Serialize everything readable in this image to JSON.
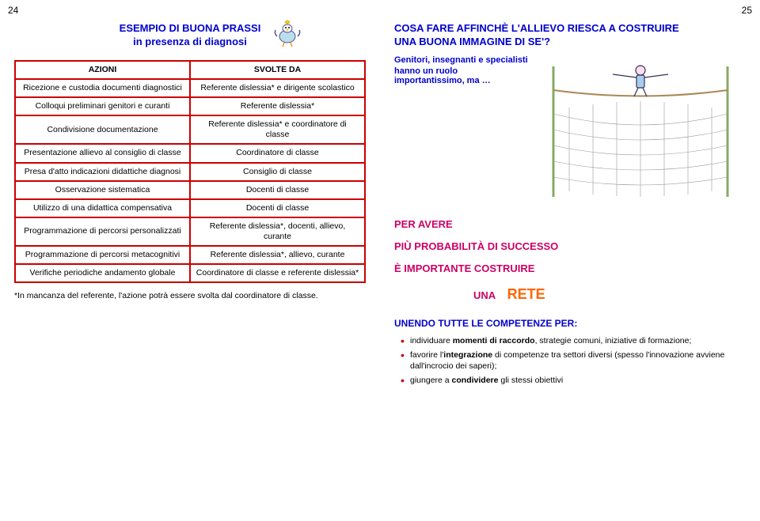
{
  "pagenum_left": "24",
  "pagenum_right": "25",
  "left": {
    "title1": "ESEMPIO DI BUONA PRASSI",
    "title2": "in presenza di diagnosi",
    "table": {
      "header": [
        "AZIONI",
        "SVOLTE DA"
      ],
      "rows": [
        [
          "Ricezione e custodia documenti diagnostici",
          "Referente dislessia* e dirigente scolastico"
        ],
        [
          "Colloqui preliminari genitori e curanti",
          "Referente dislessia*"
        ],
        [
          "Condivisione documentazione",
          "Referente dislessia* e coordinatore di classe"
        ],
        [
          "Presentazione allievo al consiglio di classe",
          "Coordinatore di classe"
        ],
        [
          "Presa d'atto indicazioni didattiche diagnosi",
          "Consiglio di classe"
        ],
        [
          "Osservazione sistematica",
          "Docenti di classe"
        ],
        [
          "Utilizzo di una didattica compensativa",
          "Docenti di classe"
        ],
        [
          "Programmazione di percorsi personalizzati",
          "Referente dislessia*, docenti, allievo, curante"
        ],
        [
          "Programmazione di percorsi metacognitivi",
          "Referente dislessia*, allievo, curante"
        ],
        [
          "Verifiche periodiche andamento globale",
          "Coordinatore di classe e referente dislessia*"
        ]
      ]
    },
    "footnote": "*In mancanza del referente, l'azione potrà essere svolta dal coordinatore di classe."
  },
  "right": {
    "title1": "COSA FARE AFFINCHÈ L'ALLIEVO RIESCA A COSTRUIRE",
    "title2": "UNA BUONA IMMAGINE DI SE'?",
    "sub1": "Genitori, insegnanti e specialisti",
    "sub2": "hanno un ruolo importantissimo, ma …",
    "msg1": "PER AVERE",
    "msg2": "PIÙ PROBABILITÀ DI SUCCESSO",
    "msg3": "È IMPORTANTE COSTRUIRE",
    "msg_una": "UNA",
    "msg_rete": "RETE",
    "union_title": "UNENDO TUTTE LE COMPETENZE PER:",
    "goals": [
      {
        "pre": "individuare ",
        "bold": "momenti di raccordo",
        "post": ", strategie comuni, iniziative di formazione;"
      },
      {
        "pre": "favorire l'",
        "bold": "integrazione",
        "post": " di competenze tra settori diversi (spesso l'innovazione avviene dall'incrocio dei saperi);"
      },
      {
        "pre": "giungere a ",
        "bold": "condividere",
        "post": " gli stessi obiettivi"
      }
    ]
  },
  "colors": {
    "blue": "#0000cc",
    "red_border": "#cc0000",
    "magenta": "#cc0066",
    "orange": "#ff6600"
  }
}
